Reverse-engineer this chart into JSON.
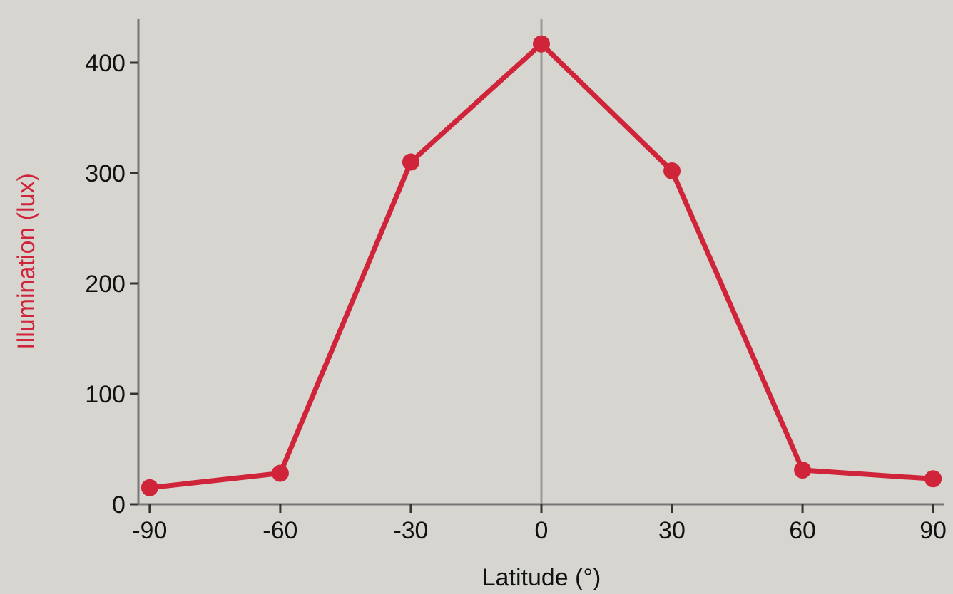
{
  "chart_data": {
    "type": "line",
    "xlabel": "Latitude (°)",
    "ylabel": "Illumination (lux)",
    "x": [
      -90,
      -60,
      -30,
      0,
      30,
      60,
      90
    ],
    "series": [
      {
        "color": "#d0243a",
        "values": [
          15,
          28,
          310,
          417,
          302,
          31,
          23
        ]
      }
    ],
    "xlim": [
      -92.6,
      92.6
    ],
    "ylim": [
      0,
      440
    ],
    "xticks": [
      -90,
      -60,
      -30,
      0,
      30,
      60,
      90
    ],
    "yticks": [
      0,
      100,
      200,
      300,
      400
    ],
    "ref_lines": [
      {
        "axis": "x",
        "value": 0,
        "color": "#9a9a9a"
      }
    ],
    "marker": "circle",
    "line_style": "solid"
  }
}
